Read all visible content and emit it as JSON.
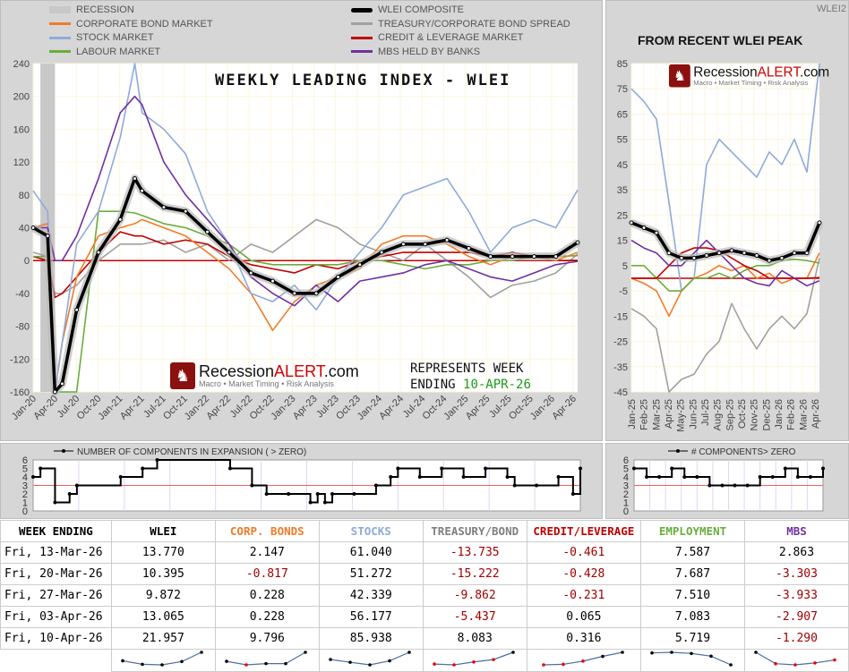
{
  "legend": [
    {
      "label": "RECESSION",
      "color": "#c8c8c8"
    },
    {
      "label": "CORPORATE BOND MARKET",
      "color": "#f07b28"
    },
    {
      "label": "STOCK MARKET",
      "color": "#8eaadb"
    },
    {
      "label": "LABOUR MARKET",
      "color": "#6aad3d"
    },
    {
      "label": "WLEI COMPOSITE",
      "color": "#000000"
    },
    {
      "label": "TREASURY/CORPORATE BOND SPREAD",
      "color": "#a0a0a0"
    },
    {
      "label": "CREDIT & LEVERAGE MARKET",
      "color": "#c00000"
    },
    {
      "label": "MBS HELD BY BANKS",
      "color": "#7030a0"
    }
  ],
  "main_title": "WEEKLY LEADING INDEX - WLEI",
  "right_title": "FROM RECENT WLEI PEAK",
  "watermark": "WLEI2",
  "logo": {
    "name_a": "Recession",
    "name_b": "ALERT",
    "name_c": ".com",
    "tagline": "Macro • Market Timing • Risk Analysis"
  },
  "represents": {
    "line1": "REPRESENTS WEEK",
    "line2_label": "ENDING ",
    "line2_date": "10-APR-26"
  },
  "chart_data": [
    {
      "type": "line",
      "id": "main",
      "ylim": [
        -160,
        240
      ],
      "yticks": [
        240,
        200,
        160,
        120,
        80,
        40,
        0,
        -40,
        -80,
        -120,
        -160
      ],
      "xticks": [
        "Jan-20",
        "Apr-20",
        "Jul-20",
        "Oct-20",
        "Jan-21",
        "Apr-21",
        "Jul-21",
        "Oct-21",
        "Jan-22",
        "Apr-22",
        "Jul-22",
        "Oct-22",
        "Jan-23",
        "Apr-23",
        "Jul-23",
        "Oct-23",
        "Jan-24",
        "Apr-24",
        "Jul-24",
        "Oct-24",
        "Jan-25",
        "Apr-25",
        "Jul-25",
        "Oct-25",
        "Jan-26",
        "Apr-26"
      ],
      "recession": [
        "2020-02",
        "2020-04"
      ],
      "x": [
        "2020-01",
        "2020-03",
        "2020-04",
        "2020-05",
        "2020-07",
        "2020-10",
        "2021-01",
        "2021-03",
        "2021-04",
        "2021-07",
        "2021-10",
        "2022-01",
        "2022-04",
        "2022-07",
        "2022-10",
        "2023-01",
        "2023-04",
        "2023-07",
        "2023-10",
        "2024-01",
        "2024-04",
        "2024-07",
        "2024-10",
        "2025-01",
        "2025-04",
        "2025-07",
        "2025-10",
        "2026-01",
        "2026-04"
      ],
      "series": [
        {
          "name": "TREASURY/CORPORATE BOND SPREAD",
          "color": "#a0a0a0",
          "values": [
            10,
            5,
            -40,
            -40,
            -30,
            0,
            20,
            20,
            20,
            25,
            10,
            20,
            0,
            20,
            10,
            30,
            50,
            40,
            20,
            10,
            0,
            20,
            0,
            -20,
            -45,
            -30,
            -25,
            -15,
            8
          ]
        },
        {
          "name": "CREDIT & LEVERAGE MARKET",
          "color": "#c00000",
          "values": [
            5,
            0,
            -45,
            -40,
            -20,
            10,
            35,
            30,
            30,
            20,
            25,
            20,
            5,
            -5,
            -10,
            -15,
            -5,
            -10,
            0,
            5,
            10,
            10,
            10,
            10,
            5,
            10,
            5,
            0,
            0.3
          ]
        },
        {
          "name": "LABOUR MARKET",
          "color": "#6aad3d",
          "values": [
            5,
            5,
            -160,
            -160,
            -160,
            60,
            60,
            58,
            55,
            45,
            40,
            30,
            20,
            0,
            -5,
            -5,
            -5,
            -5,
            0,
            0,
            -5,
            -10,
            -5,
            -5,
            0,
            0,
            5,
            5,
            6
          ]
        },
        {
          "name": "CORPORATE BOND MARKET",
          "color": "#f07b28",
          "values": [
            40,
            45,
            -160,
            -100,
            -20,
            30,
            40,
            45,
            50,
            40,
            30,
            10,
            -10,
            -40,
            -85,
            -50,
            -30,
            -20,
            -10,
            20,
            30,
            30,
            20,
            5,
            -5,
            5,
            5,
            0,
            10
          ]
        },
        {
          "name": "STOCK MARKET",
          "color": "#8eaadb",
          "values": [
            85,
            60,
            -160,
            -100,
            20,
            60,
            150,
            240,
            180,
            160,
            130,
            60,
            20,
            -40,
            -50,
            -30,
            -60,
            -20,
            10,
            40,
            80,
            90,
            100,
            60,
            10,
            40,
            50,
            40,
            86
          ]
        },
        {
          "name": "MBS HELD BY BANKS",
          "color": "#7030a0",
          "values": [
            40,
            40,
            0,
            0,
            30,
            100,
            180,
            200,
            190,
            120,
            80,
            50,
            20,
            -20,
            -40,
            -55,
            -30,
            -50,
            -25,
            -20,
            -15,
            -5,
            0,
            -10,
            -20,
            -25,
            -15,
            -5,
            -1
          ]
        },
        {
          "name": "WLEI COMPOSITE",
          "color": "#000000",
          "marker": true,
          "values": [
            40,
            30,
            -160,
            -150,
            -60,
            10,
            50,
            100,
            85,
            65,
            60,
            35,
            10,
            -15,
            -25,
            -40,
            -40,
            -20,
            -5,
            10,
            20,
            20,
            25,
            15,
            5,
            5,
            5,
            5,
            22
          ]
        }
      ]
    },
    {
      "type": "line",
      "id": "right",
      "ylim": [
        -45,
        85
      ],
      "yticks": [
        85,
        75,
        65,
        55,
        45,
        35,
        25,
        15,
        5,
        -5,
        -15,
        -25,
        -35,
        -45
      ],
      "xticks": [
        "Jan-25",
        "Feb-25",
        "Mar-25",
        "Apr-25",
        "May-25",
        "Jun-25",
        "Jul-25",
        "Aug-25",
        "Sep-25",
        "Oct-25",
        "Nov-25",
        "Dec-25",
        "Jan-26",
        "Feb-26",
        "Mar-26",
        "Apr-26"
      ],
      "x": [
        "2025-01",
        "2025-02",
        "2025-03",
        "2025-04",
        "2025-05",
        "2025-06",
        "2025-07",
        "2025-08",
        "2025-09",
        "2025-10",
        "2025-11",
        "2025-12",
        "2026-01",
        "2026-02",
        "2026-03",
        "2026-04"
      ],
      "series": [
        {
          "name": "TREASURY/CORPORATE BOND SPREAD",
          "color": "#a0a0a0",
          "values": [
            -12,
            -15,
            -20,
            -45,
            -40,
            -38,
            -30,
            -25,
            -10,
            -20,
            -28,
            -20,
            -15,
            -20,
            -14,
            8
          ]
        },
        {
          "name": "STOCK MARKET",
          "color": "#8eaadb",
          "values": [
            75,
            70,
            63,
            30,
            -5,
            0,
            45,
            55,
            50,
            45,
            40,
            50,
            45,
            55,
            42,
            86
          ]
        },
        {
          "name": "CORPORATE BOND MARKET",
          "color": "#f07b28",
          "values": [
            0,
            -2,
            -5,
            -15,
            -5,
            0,
            2,
            5,
            3,
            5,
            0,
            2,
            -2,
            0,
            0,
            10
          ]
        },
        {
          "name": "LABOUR MARKET",
          "color": "#6aad3d",
          "values": [
            5,
            5,
            0,
            -5,
            -5,
            0,
            0,
            2,
            0,
            3,
            5,
            5,
            7,
            7.5,
            7,
            6
          ]
        },
        {
          "name": "CREDIT & LEVERAGE MARKET",
          "color": "#c00000",
          "values": [
            0,
            0,
            0,
            5,
            10,
            12,
            12,
            11,
            8,
            5,
            3,
            0,
            0,
            0,
            0,
            0.3
          ]
        },
        {
          "name": "MBS HELD BY BANKS",
          "color": "#7030a0",
          "values": [
            15,
            12,
            10,
            5,
            5,
            10,
            15,
            10,
            5,
            0,
            -2,
            -3,
            3,
            0,
            -3,
            -1
          ]
        },
        {
          "name": "WLEI COMPOSITE",
          "color": "#000000",
          "marker": true,
          "values": [
            22,
            20,
            18,
            10,
            8,
            8,
            9,
            10,
            11,
            10,
            9,
            7,
            8,
            10,
            10,
            22
          ]
        }
      ]
    },
    {
      "type": "line",
      "id": "count_main",
      "title": "NUMBER OF COMPONENTS IN EXPANSION ( > ZERO)",
      "ylim": [
        0,
        6
      ],
      "yticks": [
        6,
        5,
        4,
        3,
        2,
        1,
        0
      ],
      "threshold": 3,
      "x": [
        "2020-01",
        "2020-02",
        "2020-04",
        "2020-06",
        "2020-07",
        "2021-01",
        "2021-04",
        "2021-06",
        "2022-04",
        "2022-07",
        "2022-09",
        "2022-12",
        "2023-03",
        "2023-04",
        "2023-05",
        "2023-06",
        "2023-09",
        "2023-12",
        "2024-02",
        "2024-03",
        "2024-06",
        "2024-09",
        "2024-12",
        "2025-03",
        "2025-06",
        "2025-07",
        "2025-10",
        "2026-01",
        "2026-03",
        "2026-04"
      ],
      "values": [
        4,
        5,
        1,
        2,
        3,
        4,
        5,
        6,
        5,
        3,
        2,
        2,
        1,
        2,
        1,
        2,
        2,
        3,
        4,
        5,
        4,
        5,
        4,
        5,
        4,
        3,
        3,
        4,
        2,
        5
      ]
    },
    {
      "type": "line",
      "id": "count_right",
      "title": "# COMPONENTS> ZERO",
      "ylim": [
        0,
        6
      ],
      "yticks": [
        6,
        5,
        4,
        3,
        2,
        1,
        0
      ],
      "threshold": 3,
      "x": [
        "2025-01",
        "2025-02",
        "2025-03",
        "2025-04",
        "2025-05",
        "2025-06",
        "2025-07",
        "2025-08",
        "2025-09",
        "2025-10",
        "2025-11",
        "2025-12",
        "2026-01",
        "2026-02",
        "2026-03",
        "2026-04"
      ],
      "values": [
        5,
        4,
        4,
        5,
        4,
        4,
        3,
        3,
        3,
        3,
        4,
        4,
        5,
        4,
        4,
        5
      ]
    }
  ],
  "table": {
    "headers": [
      {
        "label": "WEEK ENDING",
        "color": "#000000"
      },
      {
        "label": "WLEI",
        "color": "#000000"
      },
      {
        "label": "CORP. BONDS",
        "color": "#f07b28"
      },
      {
        "label": "STOCKS",
        "color": "#8eaadb"
      },
      {
        "label": "TREASURY/BOND",
        "color": "#7f7f7f"
      },
      {
        "label": "CREDIT/LEVERAGE",
        "color": "#c00000"
      },
      {
        "label": "EMPLOYMENT",
        "color": "#6aad3d"
      },
      {
        "label": "MBS",
        "color": "#7030a0"
      }
    ],
    "rows": [
      [
        "Fri, 13-Mar-26",
        "13.770",
        "2.147",
        "61.040",
        "-13.735",
        "-0.461",
        "7.587",
        "2.863"
      ],
      [
        "Fri, 20-Mar-26",
        "10.395",
        "-0.817",
        "51.272",
        "-15.222",
        "-0.428",
        "7.687",
        "-3.303"
      ],
      [
        "Fri, 27-Mar-26",
        "9.872",
        "0.228",
        "42.339",
        "-9.862",
        "-0.231",
        "7.510",
        "-3.933"
      ],
      [
        "Fri, 03-Apr-26",
        "13.065",
        "0.228",
        "56.177",
        "-5.437",
        "0.065",
        "7.083",
        "-2.907"
      ],
      [
        "Fri, 10-Apr-26",
        "21.957",
        "9.796",
        "85.938",
        "8.083",
        "0.316",
        "5.719",
        "-1.290"
      ]
    ]
  }
}
